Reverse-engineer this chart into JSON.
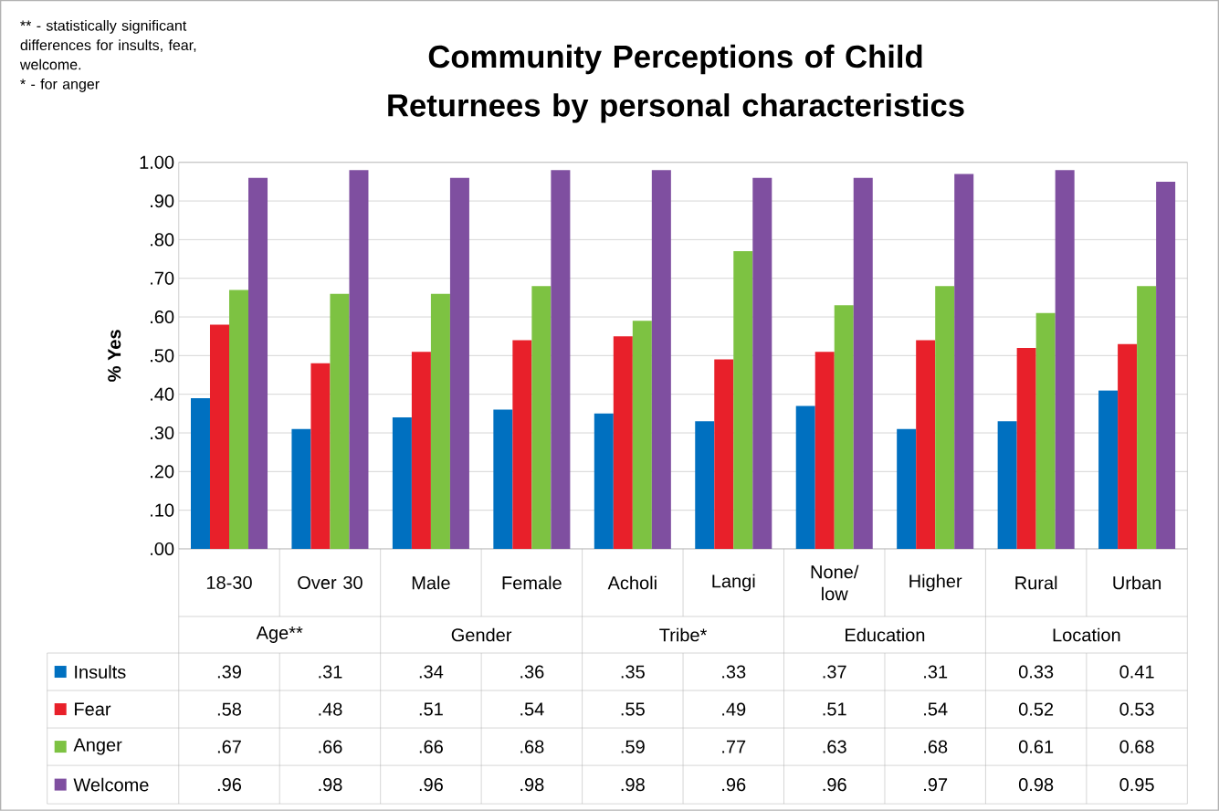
{
  "chart_data": {
    "type": "bar",
    "title": "Community Perceptions of Child Returnees by personal characteristics",
    "ylabel": "% Yes",
    "categories": [
      "18-30",
      "Over 30",
      "Male",
      "Female",
      "Acholi",
      "Langi",
      "None/ low",
      "Higher",
      "Rural",
      "Urban"
    ],
    "series": [
      {
        "name": "Insults",
        "color": "#0070c0",
        "values": [
          0.39,
          0.31,
          0.34,
          0.36,
          0.35,
          0.33,
          0.37,
          0.31,
          0.33,
          0.41
        ],
        "value_labels": [
          ".39",
          ".31",
          ".34",
          ".36",
          ".35",
          ".33",
          ".37",
          ".31",
          "0.33",
          "0.41"
        ]
      },
      {
        "name": "Fear",
        "color": "#e8202a",
        "values": [
          0.58,
          0.48,
          0.51,
          0.54,
          0.55,
          0.49,
          0.51,
          0.54,
          0.52,
          0.53
        ],
        "value_labels": [
          ".58",
          ".48",
          ".51",
          ".54",
          ".55",
          ".49",
          ".51",
          ".54",
          "0.52",
          "0.53"
        ]
      },
      {
        "name": "Anger",
        "color": "#7dc242",
        "values": [
          0.67,
          0.66,
          0.66,
          0.68,
          0.59,
          0.77,
          0.63,
          0.68,
          0.61,
          0.68
        ],
        "value_labels": [
          ".67",
          ".66",
          ".66",
          ".68",
          ".59",
          ".77",
          ".63",
          ".68",
          "0.61",
          "0.68"
        ]
      },
      {
        "name": "Welcome",
        "color": "#7f4fa0",
        "values": [
          0.96,
          0.98,
          0.96,
          0.98,
          0.98,
          0.96,
          0.96,
          0.97,
          0.98,
          0.95
        ],
        "value_labels": [
          ".96",
          ".98",
          ".96",
          ".98",
          ".98",
          ".96",
          ".96",
          ".97",
          "0.98",
          "0.95"
        ]
      }
    ],
    "ylim": [
      0,
      1
    ],
    "yticks": [
      {
        "value": 0,
        "label": ".00"
      },
      {
        "value": 0.1,
        "label": ".10"
      },
      {
        "value": 0.2,
        "label": ".20"
      },
      {
        "value": 0.3,
        "label": ".30"
      },
      {
        "value": 0.4,
        "label": ".40"
      },
      {
        "value": 0.5,
        "label": ".50"
      },
      {
        "value": 0.6,
        "label": ".60"
      },
      {
        "value": 0.7,
        "label": ".70"
      },
      {
        "value": 0.8,
        "label": ".80"
      },
      {
        "value": 0.9,
        "label": ".90"
      },
      {
        "value": 1,
        "label": "1.00"
      }
    ],
    "grid": "y",
    "legend": "bottom",
    "annotations": [
      "Age**",
      "Gender",
      "Tribe*",
      "Education",
      "Location",
      "** - statistically significant differences for insults, fear, welcome.",
      "* - for anger"
    ]
  }
}
